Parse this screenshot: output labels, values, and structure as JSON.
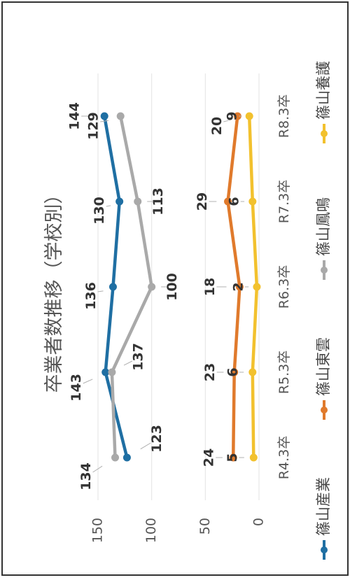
{
  "chart_data": {
    "type": "line",
    "title": "卒業者数推移（学校別）",
    "categories": [
      "R4.3卒",
      "R5.3卒",
      "R6.3卒",
      "R7.3卒",
      "R8.3卒"
    ],
    "ylim": [
      0,
      150
    ],
    "yticks": [
      "0",
      "50",
      "100",
      "150"
    ],
    "grid": true,
    "legend_position": "bottom",
    "series": [
      {
        "name": "篠山産業",
        "color": "#1f6fa3",
        "values": [
          123,
          143,
          136,
          130,
          144
        ],
        "labels": [
          "123",
          "143",
          "136",
          "130",
          "144"
        ]
      },
      {
        "name": "篠山東雲",
        "color": "#e07a2c",
        "values": [
          24,
          23,
          18,
          29,
          20
        ],
        "labels": [
          "24",
          "23",
          "18",
          "29",
          "20"
        ]
      },
      {
        "name": "篠山鳳鳴",
        "color": "#a9a9a9",
        "values": [
          134,
          137,
          100,
          113,
          129
        ],
        "labels": [
          "134",
          "137",
          "100",
          "113",
          "129"
        ]
      },
      {
        "name": "篠山養護",
        "color": "#f2c12e",
        "values": [
          5,
          6,
          2,
          6,
          9
        ],
        "labels": [
          "5",
          "6",
          "2",
          "6",
          "9"
        ]
      }
    ]
  }
}
